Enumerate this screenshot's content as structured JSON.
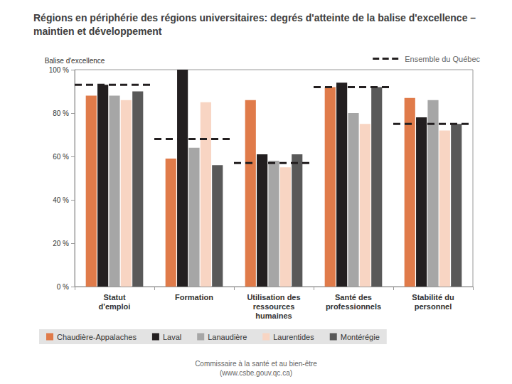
{
  "chart_data": {
    "type": "bar",
    "title": "Régions en périphérie des régions universitaires: degrés d'atteinte de la balise d'excellence –\nmaintien et développement",
    "y_label": "Balise d'excellence",
    "source": "Commissaire à la santé et au bien-être\n(www.csbe.gouv.qc.ca)",
    "categories": [
      "Statut\nd'emploi",
      "Formation",
      "Utilisation des\nressources\nhumaines",
      "Santé des\nprofessionnels",
      "Stabilité du\npersonnel"
    ],
    "series": [
      {
        "name": "Chaudière-Appalaches",
        "color": "#e07b4a",
        "values": [
          88,
          59,
          86,
          92,
          87
        ]
      },
      {
        "name": "Laval",
        "color": "#231f20",
        "values": [
          93,
          100,
          61,
          94,
          78
        ]
      },
      {
        "name": "Lanaudière",
        "color": "#a6a6a6",
        "values": [
          88,
          64,
          58,
          80,
          86
        ]
      },
      {
        "name": "Laurentides",
        "color": "#f8d5c3",
        "values": [
          86,
          85,
          55,
          75,
          72
        ]
      },
      {
        "name": "Montérégie",
        "color": "#595959",
        "values": [
          90,
          56,
          61,
          92,
          75
        ]
      },
      {
        "name": "Ensemble du Québec",
        "color": "#231f20",
        "type": "line",
        "line_style": "dashed",
        "values": [
          93,
          68,
          57,
          92,
          75
        ]
      }
    ],
    "ylim": [
      0,
      100
    ],
    "yticks": [
      {
        "value": 0,
        "label": "0 %"
      },
      {
        "value": 20,
        "label": "20 %"
      },
      {
        "value": 40,
        "label": "40 %"
      },
      {
        "value": 60,
        "label": "60 %"
      },
      {
        "value": 80,
        "label": "80 %"
      },
      {
        "value": 100,
        "label": "100 %"
      }
    ],
    "grid": false,
    "legend": "bottom",
    "data_labels": false
  }
}
